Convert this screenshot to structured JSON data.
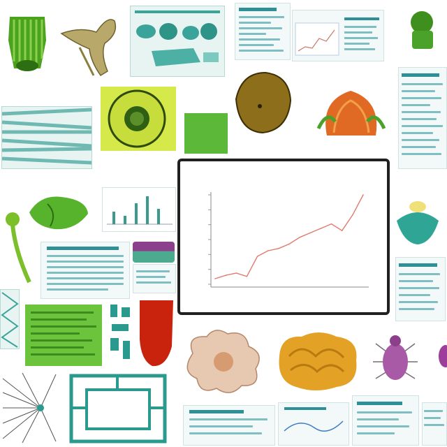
{
  "collage": {
    "tiles": [
      {
        "id": "tile-green-plant-top-left",
        "kind": "specimen",
        "color": "#4aa21e"
      },
      {
        "id": "tile-bone-specimen",
        "kind": "specimen",
        "color": "#b8a86a"
      },
      {
        "id": "tile-teal-diagram-grid",
        "kind": "diagram",
        "color": "#3aa39a"
      },
      {
        "id": "tile-document-top-center",
        "kind": "document"
      },
      {
        "id": "tile-document-with-plot-top",
        "kind": "document"
      },
      {
        "id": "tile-green-leaf-top-right",
        "kind": "specimen",
        "color": "#3f8f1f"
      },
      {
        "id": "tile-teal-stripes-left",
        "kind": "diagram",
        "color": "#6fb9b2"
      },
      {
        "id": "tile-cell-cross-section",
        "kind": "specimen",
        "color": "#c7dd3b"
      },
      {
        "id": "tile-green-swatch",
        "kind": "specimen",
        "color": "#5cb838"
      },
      {
        "id": "tile-brown-seed",
        "kind": "specimen",
        "color": "#8d6e1a"
      },
      {
        "id": "tile-orange-flower",
        "kind": "specimen",
        "color": "#e06a24"
      },
      {
        "id": "tile-document-right-column",
        "kind": "document"
      },
      {
        "id": "tile-bar-chart-mini",
        "kind": "chart"
      },
      {
        "id": "tile-green-leaf-left",
        "kind": "specimen",
        "color": "#58b32c"
      },
      {
        "id": "tile-green-stem",
        "kind": "specimen",
        "color": "#7bbf2a"
      },
      {
        "id": "tile-table-left",
        "kind": "document"
      },
      {
        "id": "tile-purple-swatch",
        "kind": "specimen",
        "color": "#8b3f8c"
      },
      {
        "id": "tile-teal-turtle",
        "kind": "specimen",
        "color": "#2fa596"
      },
      {
        "id": "tile-green-document",
        "kind": "document",
        "color": "#6cc43c"
      },
      {
        "id": "tile-teal-glyphs",
        "kind": "diagram",
        "color": "#2a9a8e"
      },
      {
        "id": "tile-red-swatch",
        "kind": "specimen",
        "color": "#c9230e"
      },
      {
        "id": "tile-pink-blob",
        "kind": "specimen",
        "color": "#e7c8b0"
      },
      {
        "id": "tile-orange-coral",
        "kind": "specimen",
        "color": "#e3a226"
      },
      {
        "id": "tile-purple-insect",
        "kind": "specimen",
        "color": "#a85aa6"
      },
      {
        "id": "tile-radiating-lines",
        "kind": "diagram"
      },
      {
        "id": "tile-teal-frame-diagram",
        "kind": "diagram",
        "color": "#2a9a8e"
      },
      {
        "id": "tile-documents-bottom",
        "kind": "document"
      }
    ]
  },
  "center_chart": {
    "frame_color": "#202020",
    "line_color": "#e07b6e"
  },
  "chart_data": {
    "type": "line",
    "x": [
      0,
      1,
      2,
      3,
      4,
      5,
      6,
      7,
      8,
      9,
      10,
      11,
      12,
      13,
      14
    ],
    "series": [
      {
        "values": [
          5,
          8,
          10,
          7,
          25,
          30,
          32,
          36,
          42,
          46,
          50,
          54,
          48,
          62,
          80
        ]
      }
    ],
    "legend": "none",
    "grid": false
  }
}
